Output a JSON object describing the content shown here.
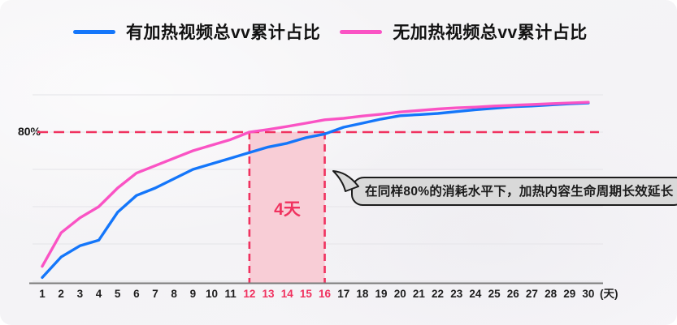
{
  "legend": {
    "items": [
      {
        "label": "有加热视频总vv累计占比",
        "color": "#1476fa"
      },
      {
        "label": "无加热视频总vv累计占比",
        "color": "#fa53c4"
      }
    ]
  },
  "reference_line": {
    "label": "80%",
    "value": 80
  },
  "highlight": {
    "label": "4天",
    "from_day": 12,
    "to_day": 16
  },
  "annotation": {
    "text": "在同样80%的消耗水平下，加热内容生命周期长效延长"
  },
  "x_axis": {
    "unit_label": "(天)",
    "highlight_days": [
      12,
      13,
      14,
      15,
      16
    ]
  },
  "colors": {
    "blue_series": "#1476fa",
    "pink_series": "#fa53c4",
    "accent_red": "#f0325f",
    "highlight_fill": "#f8cdd6",
    "gridline": "#e8e7eb",
    "axis": "#7a7a7a",
    "tick_text": "#1d1d1d",
    "bubble_fill": "#d9d9d9",
    "bubble_border": "#1c1c1c",
    "background": "#f5f4f6"
  },
  "chart_data": {
    "type": "line",
    "x": [
      1,
      2,
      3,
      4,
      5,
      6,
      7,
      8,
      9,
      10,
      11,
      12,
      13,
      14,
      15,
      16,
      17,
      18,
      19,
      20,
      21,
      22,
      23,
      24,
      25,
      26,
      27,
      28,
      29,
      30
    ],
    "x_unit_label": "(天)",
    "ylim": [
      39,
      94
    ],
    "gridline_values": [
      40,
      50,
      60,
      70,
      80,
      90
    ],
    "grid": true,
    "legend_position": "top",
    "reference_line": {
      "value": 80,
      "label": "80%"
    },
    "highlight_x_range": [
      12,
      16
    ],
    "highlight_label": "4天",
    "series": [
      {
        "name": "有加热视频总vv累计占比",
        "color": "#1476fa",
        "values": [
          41,
          46.5,
          49.5,
          51,
          58.5,
          63,
          65,
          67.5,
          70,
          71.5,
          73,
          74.5,
          76,
          77,
          78.5,
          79.5,
          81.3,
          82.4,
          83.5,
          84.4,
          84.7,
          85,
          85.5,
          86,
          86.4,
          86.8,
          87,
          87.3,
          87.6,
          87.8
        ]
      },
      {
        "name": "无加热视频总vv累计占比",
        "color": "#fa53c4",
        "values": [
          44,
          53,
          57,
          60,
          65,
          69,
          71,
          73,
          75,
          76.5,
          78,
          80,
          80.7,
          81.5,
          82.4,
          83.3,
          83.7,
          84.3,
          84.8,
          85.4,
          85.8,
          86.2,
          86.5,
          86.7,
          87,
          87.2,
          87.4,
          87.6,
          87.8,
          88
        ]
      }
    ]
  }
}
